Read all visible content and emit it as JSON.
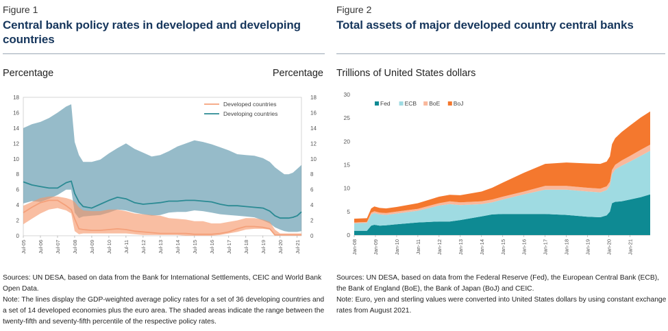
{
  "figure1": {
    "label": "Figure 1",
    "title": "Central bank policy rates in developed and developing countries",
    "unit_left": "Percentage",
    "unit_right": "Percentage",
    "sources": "Sources: UN DESA, based on data from the Bank for International Settlements, CEIC and World Bank Open Data.",
    "note": "Note: The lines display the GDP-weighted average policy rates for a set of 36 developing countries and a set of 14 developed economies plus the euro area. The shaded areas indicate the range between the twenty-fifth and seventy-fifth percentile of the respective policy rates."
  },
  "figure2": {
    "label": "Figure 2",
    "title": "Total assets of major developed country central banks",
    "unit": "Trillions of United States dollars",
    "sources": "Sources: UN DESA, based on data from the Federal Reserve (Fed), the European Central Bank (ECB), the Bank of England (BoE), the Bank of Japan (BoJ) and CEIC.",
    "note": "Note: Euro, yen and sterling values were converted into United States dollars by using constant exchange rates from August 2021."
  },
  "chart_data": [
    {
      "type": "line",
      "title": "Central bank policy rates in developed and developing countries",
      "ylabel": "Percentage",
      "ylim": [
        0,
        18
      ],
      "yticks": [
        0,
        2,
        4,
        6,
        8,
        10,
        12,
        14,
        16,
        18
      ],
      "xlim": [
        2005.5,
        2021.75
      ],
      "xticks": [
        "Jul-05",
        "Jul-06",
        "Jul-07",
        "Jul-08",
        "Jul-09",
        "Jul-10",
        "Jul-11",
        "Jul-12",
        "Jul-13",
        "Jul-14",
        "Jul-15",
        "Jul-16",
        "Jul-17",
        "Jul-18",
        "Jul-19",
        "Jul-20",
        "Jul-21"
      ],
      "legend": "top-center",
      "x": [
        2005.5,
        2006.0,
        2006.5,
        2007.0,
        2007.5,
        2008.0,
        2008.3,
        2008.5,
        2008.75,
        2009.0,
        2009.5,
        2010.0,
        2010.5,
        2011.0,
        2011.5,
        2012.0,
        2012.5,
        2013.0,
        2013.5,
        2014.0,
        2014.5,
        2015.0,
        2015.5,
        2016.0,
        2016.5,
        2017.0,
        2017.5,
        2018.0,
        2018.5,
        2019.0,
        2019.5,
        2019.9,
        2020.2,
        2020.5,
        2020.75,
        2021.0,
        2021.25,
        2021.5,
        2021.75
      ],
      "series": [
        {
          "name": "Developed countries",
          "color": "#f4a07a",
          "values": [
            3.0,
            3.7,
            4.3,
            4.6,
            4.6,
            3.9,
            3.4,
            2.2,
            0.9,
            0.8,
            0.7,
            0.7,
            0.8,
            0.9,
            0.8,
            0.6,
            0.5,
            0.4,
            0.3,
            0.3,
            0.3,
            0.3,
            0.2,
            0.2,
            0.2,
            0.3,
            0.5,
            0.9,
            1.2,
            1.2,
            1.1,
            0.9,
            0.1,
            0.1,
            0.1,
            0.1,
            0.1,
            0.1,
            0.1
          ],
          "band_p25": [
            1.5,
            2.2,
            2.9,
            3.4,
            3.6,
            3.3,
            2.9,
            0.6,
            0.2,
            0.3,
            0.3,
            0.3,
            0.3,
            0.3,
            0.3,
            0.2,
            0.1,
            0.1,
            0.1,
            0.1,
            0.1,
            0.0,
            0.0,
            0.0,
            0.0,
            0.1,
            0.3,
            0.5,
            0.8,
            0.9,
            0.9,
            0.8,
            0.1,
            0.1,
            0.1,
            0.1,
            0.1,
            0.1,
            0.1
          ],
          "band_p75": [
            3.9,
            4.4,
            4.9,
            5.1,
            5.1,
            4.9,
            4.7,
            4.4,
            3.7,
            3.3,
            3.2,
            3.2,
            3.4,
            3.4,
            3.2,
            2.9,
            2.8,
            2.7,
            2.6,
            2.3,
            2.2,
            2.1,
            1.9,
            1.9,
            1.6,
            1.6,
            1.8,
            2.0,
            2.3,
            2.3,
            2.1,
            1.8,
            0.8,
            0.3,
            0.3,
            0.3,
            0.3,
            0.3,
            0.3
          ]
        },
        {
          "name": "Developing countries",
          "color": "#2a8a93",
          "values": [
            7.0,
            6.6,
            6.4,
            6.2,
            6.2,
            6.9,
            7.1,
            5.5,
            4.4,
            3.8,
            3.6,
            4.1,
            4.6,
            5.0,
            4.8,
            4.3,
            4.1,
            4.2,
            4.3,
            4.5,
            4.5,
            4.6,
            4.6,
            4.5,
            4.4,
            4.1,
            3.9,
            3.9,
            3.8,
            3.7,
            3.6,
            3.2,
            2.6,
            2.3,
            2.3,
            2.3,
            2.4,
            2.6,
            3.1
          ],
          "band_p25": [
            4.2,
            4.5,
            4.4,
            4.8,
            5.3,
            6.0,
            6.0,
            3.0,
            2.3,
            2.5,
            2.6,
            2.7,
            3.0,
            3.4,
            3.3,
            3.0,
            2.8,
            2.6,
            2.7,
            3.0,
            3.1,
            3.1,
            3.3,
            3.2,
            3.0,
            2.8,
            2.7,
            2.6,
            2.5,
            2.4,
            2.0,
            1.6,
            1.1,
            0.8,
            0.6,
            0.5,
            0.5,
            0.5,
            0.6
          ],
          "band_p75": [
            14.0,
            14.5,
            14.8,
            15.3,
            16.0,
            16.8,
            17.1,
            12.2,
            10.5,
            9.6,
            9.6,
            9.9,
            10.7,
            11.4,
            12.0,
            11.3,
            10.8,
            10.3,
            10.5,
            11.0,
            11.6,
            12.0,
            12.4,
            12.2,
            11.9,
            11.5,
            11.1,
            10.6,
            10.5,
            10.4,
            10.1,
            9.6,
            8.9,
            8.4,
            8.0,
            8.0,
            8.2,
            8.7,
            9.2
          ]
        }
      ]
    },
    {
      "type": "area",
      "stacked": true,
      "title": "Total assets of major developed country central banks",
      "ylabel": "Trillions of United States dollars",
      "ylim": [
        0,
        30
      ],
      "yticks": [
        0,
        5,
        10,
        15,
        20,
        25,
        30
      ],
      "xlim": [
        2008.0,
        2021.95
      ],
      "xticks": [
        "Jan-08",
        "Jan-09",
        "Jan-10",
        "Jan-11",
        "Jan-12",
        "Jan-13",
        "Jan-14",
        "Jan-15",
        "Jan-16",
        "Jan-17",
        "Jan-18",
        "Jan-19",
        "Jan-20",
        "Jan-21"
      ],
      "legend": "top-left",
      "x": [
        2008.0,
        2008.6,
        2008.8,
        2008.95,
        2009.2,
        2009.5,
        2010.0,
        2011.0,
        2012.0,
        2012.5,
        2013.0,
        2014.0,
        2014.5,
        2015.0,
        2016.0,
        2017.0,
        2018.0,
        2019.0,
        2019.6,
        2019.9,
        2020.05,
        2020.15,
        2020.3,
        2020.6,
        2021.0,
        2021.5,
        2021.95
      ],
      "series": [
        {
          "name": "Fed",
          "color": "#0e8a93",
          "values": [
            0.9,
            0.9,
            2.0,
            2.2,
            2.0,
            2.1,
            2.3,
            2.7,
            2.9,
            2.9,
            3.2,
            4.0,
            4.4,
            4.5,
            4.5,
            4.5,
            4.3,
            3.9,
            3.8,
            4.2,
            5.0,
            6.8,
            7.1,
            7.2,
            7.6,
            8.1,
            8.7
          ]
        },
        {
          "name": "ECB",
          "color": "#9fdbe2",
          "values": [
            1.6,
            1.7,
            2.4,
            2.5,
            2.4,
            2.2,
            2.3,
            2.5,
            3.4,
            3.7,
            3.2,
            2.6,
            2.6,
            3.1,
            4.2,
            5.2,
            5.4,
            5.4,
            5.3,
            5.4,
            5.6,
            6.2,
            6.9,
            7.6,
            8.1,
            8.8,
            9.3
          ]
        },
        {
          "name": "BoE",
          "color": "#f9b89c",
          "values": [
            0.2,
            0.2,
            0.4,
            0.4,
            0.4,
            0.4,
            0.4,
            0.4,
            0.5,
            0.6,
            0.6,
            0.6,
            0.6,
            0.6,
            0.6,
            0.8,
            0.8,
            0.8,
            0.8,
            0.8,
            0.8,
            0.9,
            1.0,
            1.1,
            1.2,
            1.3,
            1.3
          ]
        },
        {
          "name": "BoJ",
          "color": "#f4782e",
          "values": [
            0.8,
            0.8,
            0.9,
            1.0,
            1.0,
            1.0,
            1.0,
            1.2,
            1.4,
            1.4,
            1.5,
            2.1,
            2.5,
            3.0,
            4.0,
            4.7,
            5.0,
            5.2,
            5.3,
            5.3,
            5.4,
            5.5,
            5.7,
            6.1,
            6.5,
            6.9,
            7.1
          ]
        }
      ]
    }
  ]
}
